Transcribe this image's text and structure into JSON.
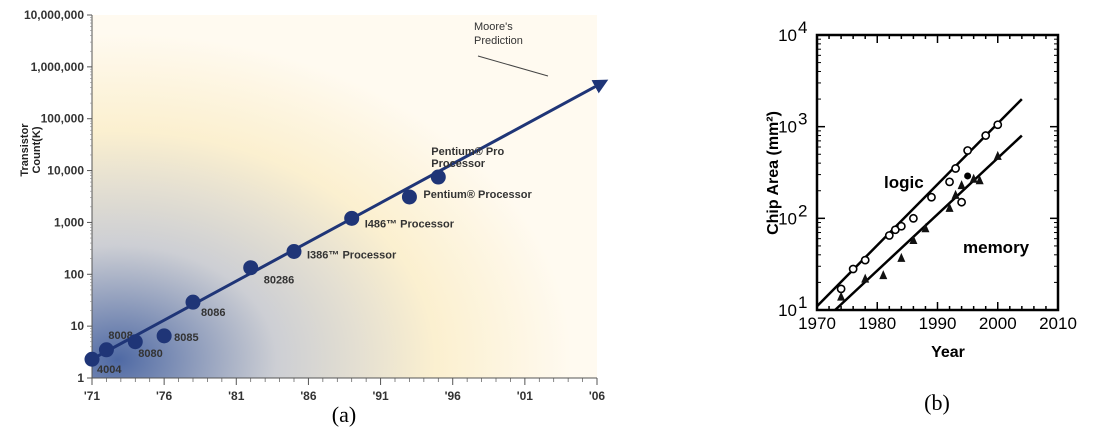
{
  "chart_data": [
    {
      "type": "scatter",
      "panel": "(a)",
      "title": "",
      "xlabel": "",
      "ylabel": [
        "Transistor",
        "Count(K)"
      ],
      "y_scale": "log",
      "ylim": [
        1,
        10000000
      ],
      "xlim": [
        1971,
        2006
      ],
      "x_ticks": [
        "'71",
        "'76",
        "'81",
        "'86",
        "'91",
        "'96",
        "'01",
        "'06"
      ],
      "y_ticks": [
        "1",
        "10",
        "100",
        "1,000",
        "10,000",
        "100,000",
        "1,000,000",
        "10,000,000"
      ],
      "points": [
        {
          "label": "4004",
          "x": 1971,
          "y": 2.3
        },
        {
          "label": "8008",
          "x": 1972,
          "y": 3.5
        },
        {
          "label": "8080",
          "x": 1974,
          "y": 5
        },
        {
          "label": "8085",
          "x": 1976,
          "y": 6.5
        },
        {
          "label": "8086",
          "x": 1978,
          "y": 29
        },
        {
          "label": "80286",
          "x": 1982,
          "y": 134
        },
        {
          "label": "I386™ Processor",
          "x": 1985,
          "y": 275
        },
        {
          "label": "I486™ Processor",
          "x": 1989,
          "y": 1200
        },
        {
          "label": "Pentium® Processor",
          "x": 1993,
          "y": 3100
        },
        {
          "label": "Pentium® Pro Processor",
          "label_lines": [
            "Pentium® Pro",
            "Processor"
          ],
          "x": 1995,
          "y": 7500
        }
      ],
      "trend_line": {
        "from": [
          1971,
          2.3
        ],
        "to": [
          2006,
          500000
        ]
      },
      "annotation": {
        "lines": [
          "Moore's",
          "Prediction"
        ]
      },
      "colors": {
        "points": "#1f3577",
        "line": "#1f3577"
      }
    },
    {
      "type": "scatter",
      "panel": "(b)",
      "title": "",
      "xlabel": "Year",
      "ylabel": "Chip Area (mm²)",
      "y_scale": "log",
      "xlim": [
        1970,
        2010
      ],
      "ylim": [
        10,
        10000
      ],
      "x_ticks": [
        "1970",
        "1980",
        "1990",
        "2000",
        "2010"
      ],
      "y_ticks": [
        {
          "base": "10",
          "exp": "1"
        },
        {
          "base": "10",
          "exp": "2"
        },
        {
          "base": "10",
          "exp": "3"
        },
        {
          "base": "10",
          "exp": "4"
        }
      ],
      "series": [
        {
          "name": "logic",
          "marker": "open-circle",
          "points": [
            [
              1974,
              17
            ],
            [
              1976,
              28
            ],
            [
              1978,
              35
            ],
            [
              1982,
              65
            ],
            [
              1983,
              75
            ],
            [
              1984,
              82
            ],
            [
              1986,
              100
            ],
            [
              1989,
              170
            ],
            [
              1992,
              250
            ],
            [
              1993,
              350
            ],
            [
              1994,
              150
            ],
            [
              1995,
              550
            ],
            [
              1998,
              800
            ],
            [
              2000,
              1050
            ]
          ],
          "fit": {
            "from": [
              1970,
              11
            ],
            "to": [
              2004,
              2000
            ]
          }
        },
        {
          "name": "memory",
          "marker": "filled-triangle",
          "points": [
            [
              1974,
              14
            ],
            [
              1978,
              22
            ],
            [
              1981,
              24
            ],
            [
              1984,
              37
            ],
            [
              1986,
              58
            ],
            [
              1988,
              78
            ],
            [
              1992,
              130
            ],
            [
              1993,
              180
            ],
            [
              1994,
              230
            ],
            [
              1996,
              270
            ],
            [
              1997,
              260
            ],
            [
              2000,
              480
            ]
          ],
          "fit": {
            "from": [
              1973,
              10
            ],
            "to": [
              2004,
              800
            ]
          }
        }
      ],
      "extra_points": [
        {
          "marker": "filled-circle",
          "points": [
            [
              1995,
              290
            ]
          ]
        }
      ]
    }
  ],
  "captions": {
    "a": "(a)",
    "b": "(b)"
  }
}
